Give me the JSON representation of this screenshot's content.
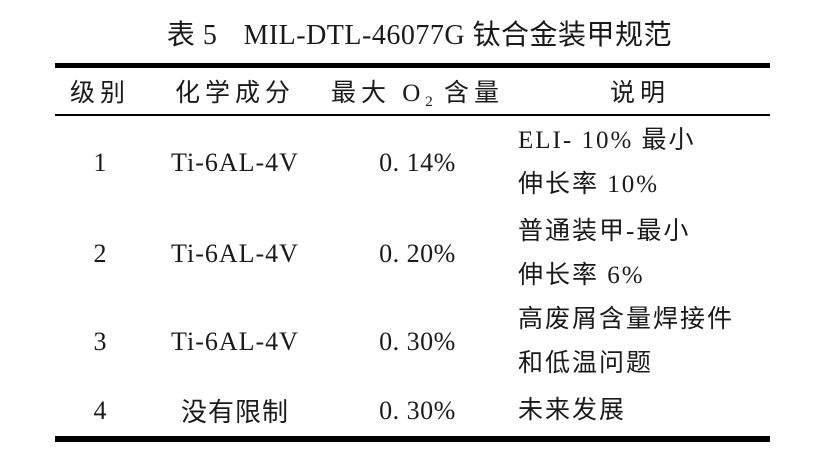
{
  "page": {
    "background": "#ffffff",
    "text_color": "#1a1a1a",
    "rule_color": "#000000"
  },
  "caption": {
    "label": "表 5",
    "text": "MIL-DTL-46077G 钛合金装甲规范"
  },
  "table": {
    "headers": {
      "grade": "级别",
      "composition": "化学成分",
      "max_o2_pre": "最大 O",
      "max_o2_sub": "2",
      "max_o2_post": " 含量",
      "description": "说明"
    },
    "rows": [
      {
        "grade": "1",
        "composition": "Ti-6AL-4V",
        "max_o2": "0. 14%",
        "description": [
          "ELI- 10% 最小",
          "伸长率 10%"
        ]
      },
      {
        "grade": "2",
        "composition": "Ti-6AL-4V",
        "max_o2": "0. 20%",
        "description": [
          "普通装甲-最小",
          "伸长率 6%"
        ]
      },
      {
        "grade": "3",
        "composition": "Ti-6AL-4V",
        "max_o2": "0. 30%",
        "description": [
          "高废屑含量焊接件",
          "和低温问题"
        ]
      },
      {
        "grade": "4",
        "composition": "没有限制",
        "max_o2": "0. 30%",
        "description": [
          "未来发展"
        ]
      }
    ]
  }
}
